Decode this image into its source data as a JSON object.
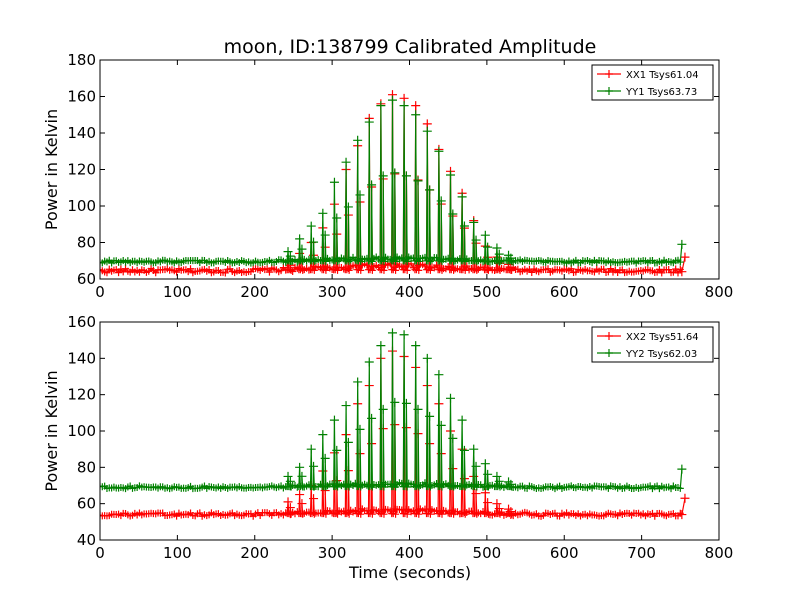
{
  "figure": {
    "title": "moon, ID:138799 Calibrated Amplitude",
    "xlabel": "Time (seconds)"
  },
  "chart_data": [
    {
      "type": "line",
      "ylabel": "Power in Kelvin",
      "xlim": [
        0,
        800
      ],
      "ylim": [
        60,
        180
      ],
      "xticks": [
        "0",
        "100",
        "200",
        "300",
        "400",
        "500",
        "600",
        "700",
        "800"
      ],
      "yticks": [
        "60",
        "80",
        "100",
        "120",
        "140",
        "160",
        "180"
      ],
      "legend_position": "top-right",
      "series": [
        {
          "name": "XX1 Tsys61.04",
          "color": "#ff0000",
          "baseline": 64.5,
          "noise": 1.2,
          "peaks": [
            [
              243,
              70
            ],
            [
              258,
              74
            ],
            [
              273,
              80
            ],
            [
              288,
              88
            ],
            [
              303,
              101
            ],
            [
              318,
              120
            ],
            [
              333,
              133
            ],
            [
              348,
              148
            ],
            [
              363,
              156
            ],
            [
              378,
              161
            ],
            [
              393,
              159
            ],
            [
              408,
              155
            ],
            [
              423,
              145
            ],
            [
              438,
              131
            ],
            [
              453,
              119
            ],
            [
              468,
              107
            ],
            [
              483,
              92
            ],
            [
              498,
              78
            ],
            [
              513,
              72
            ],
            [
              528,
              68
            ]
          ],
          "end": [
            [
              752,
              64
            ],
            [
              756,
              72
            ]
          ]
        },
        {
          "name": "YY1 Tsys63.73",
          "color": "#008000",
          "baseline": 69.5,
          "noise": 0.8,
          "peaks": [
            [
              243,
              75
            ],
            [
              258,
              82
            ],
            [
              273,
              89
            ],
            [
              288,
              96
            ],
            [
              303,
              113
            ],
            [
              318,
              124
            ],
            [
              333,
              136
            ],
            [
              348,
              146
            ],
            [
              363,
              155
            ],
            [
              378,
              158
            ],
            [
              393,
              155
            ],
            [
              408,
              150
            ],
            [
              423,
              141
            ],
            [
              438,
              130
            ],
            [
              453,
              117
            ],
            [
              468,
              105
            ],
            [
              483,
              91
            ],
            [
              498,
              84
            ],
            [
              513,
              77
            ],
            [
              528,
              73
            ]
          ],
          "end": [
            [
              752,
              79
            ]
          ]
        }
      ]
    },
    {
      "type": "line",
      "ylabel": "Power in Kelvin",
      "xlabel": "Time (seconds)",
      "xlim": [
        0,
        800
      ],
      "ylim": [
        40,
        160
      ],
      "xticks": [
        "0",
        "100",
        "200",
        "300",
        "400",
        "500",
        "600",
        "700",
        "800"
      ],
      "yticks": [
        "40",
        "60",
        "80",
        "100",
        "120",
        "140",
        "160"
      ],
      "legend_position": "top-right",
      "series": [
        {
          "name": "XX2 Tsys51.64",
          "color": "#ff0000",
          "baseline": 54,
          "noise": 1.0,
          "peaks": [
            [
              243,
              61
            ],
            [
              258,
              65
            ],
            [
              273,
              70
            ],
            [
              288,
              78
            ],
            [
              303,
              88
            ],
            [
              318,
              98
            ],
            [
              333,
              115
            ],
            [
              348,
              125
            ],
            [
              363,
              140
            ],
            [
              378,
              144
            ],
            [
              393,
              141
            ],
            [
              408,
              135
            ],
            [
              423,
              125
            ],
            [
              438,
              115
            ],
            [
              453,
              100
            ],
            [
              468,
              90
            ],
            [
              483,
              75
            ],
            [
              498,
              66
            ],
            [
              513,
              60
            ],
            [
              528,
              57
            ]
          ],
          "end": [
            [
              752,
              54
            ],
            [
              756,
              63
            ]
          ]
        },
        {
          "name": "YY2 Tsys62.03",
          "color": "#008000",
          "baseline": 69,
          "noise": 0.8,
          "peaks": [
            [
              243,
              75
            ],
            [
              258,
              80
            ],
            [
              273,
              90
            ],
            [
              288,
              98
            ],
            [
              303,
              106
            ],
            [
              318,
              114
            ],
            [
              333,
              127
            ],
            [
              348,
              138
            ],
            [
              363,
              147
            ],
            [
              378,
              154
            ],
            [
              393,
              153
            ],
            [
              408,
              147
            ],
            [
              423,
              140
            ],
            [
              438,
              131
            ],
            [
              453,
              118
            ],
            [
              468,
              106
            ],
            [
              483,
              90
            ],
            [
              498,
              82
            ],
            [
              513,
              75
            ],
            [
              528,
              72
            ]
          ],
          "end": [
            [
              752,
              79
            ]
          ]
        }
      ]
    }
  ]
}
